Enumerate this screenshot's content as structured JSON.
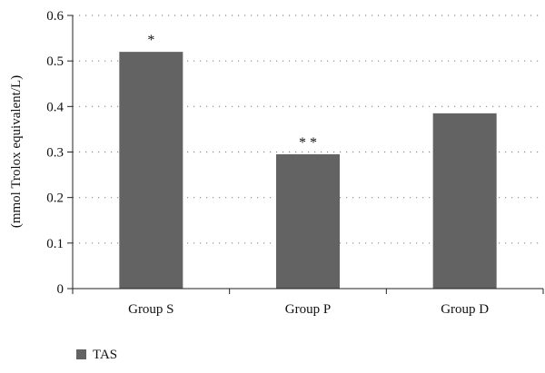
{
  "chart_data": {
    "type": "bar",
    "title": "",
    "xlabel": "",
    "ylabel": "(mmol Trolox equivalent/L)",
    "categories": [
      "Group S",
      "Group P",
      "Group D"
    ],
    "series": [
      {
        "name": "TAS",
        "values": [
          0.52,
          0.295,
          0.385
        ],
        "color": "#636363"
      }
    ],
    "annotations": [
      "*",
      "* *",
      ""
    ],
    "ylim": [
      0,
      0.6
    ],
    "yticks": [
      0,
      0.1,
      0.2,
      0.3,
      0.4,
      0.5,
      0.6
    ],
    "ytick_labels": [
      "0",
      "0.1",
      "0.2",
      "0.3",
      "0.4",
      "0.5",
      "0.6"
    ],
    "grid": "dotted-horizontal",
    "legend_position": "bottom-left"
  }
}
